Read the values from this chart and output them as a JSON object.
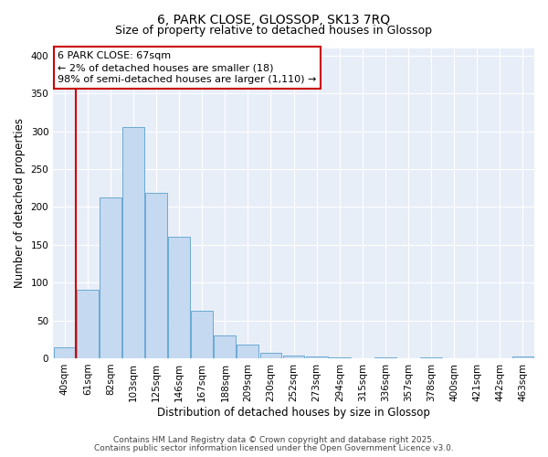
{
  "title": "6, PARK CLOSE, GLOSSOP, SK13 7RQ",
  "subtitle": "Size of property relative to detached houses in Glossop",
  "xlabel": "Distribution of detached houses by size in Glossop",
  "ylabel": "Number of detached properties",
  "bar_labels": [
    "40sqm",
    "61sqm",
    "82sqm",
    "103sqm",
    "125sqm",
    "146sqm",
    "167sqm",
    "188sqm",
    "209sqm",
    "230sqm",
    "252sqm",
    "273sqm",
    "294sqm",
    "315sqm",
    "336sqm",
    "357sqm",
    "378sqm",
    "400sqm",
    "421sqm",
    "442sqm",
    "463sqm"
  ],
  "bar_values": [
    15,
    90,
    213,
    305,
    218,
    160,
    63,
    30,
    18,
    7,
    4,
    2,
    1,
    0,
    1,
    0,
    1,
    0,
    0,
    0,
    2
  ],
  "bar_color": "#c5d9f0",
  "bar_edge_color": "#6aaad4",
  "vline_color": "#cc0000",
  "annotation_title": "6 PARK CLOSE: 67sqm",
  "annotation_line1": "← 2% of detached houses are smaller (18)",
  "annotation_line2": "98% of semi-detached houses are larger (1,110) →",
  "annotation_box_color": "#cc0000",
  "ylim": [
    0,
    410
  ],
  "yticks": [
    0,
    50,
    100,
    150,
    200,
    250,
    300,
    350,
    400
  ],
  "background_color": "#e8eef8",
  "footer1": "Contains HM Land Registry data © Crown copyright and database right 2025.",
  "footer2": "Contains public sector information licensed under the Open Government Licence v3.0.",
  "title_fontsize": 10,
  "subtitle_fontsize": 9,
  "axis_label_fontsize": 8.5,
  "tick_fontsize": 7.5,
  "annotation_fontsize": 8,
  "footer_fontsize": 6.5
}
